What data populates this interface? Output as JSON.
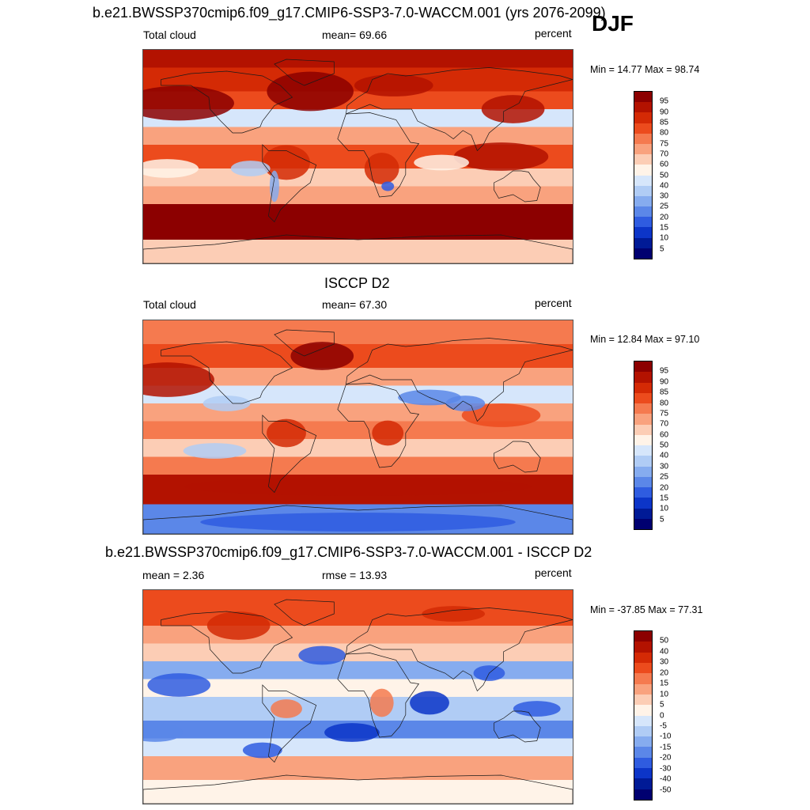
{
  "season": "DJF",
  "panels": [
    {
      "title": "b.e21.BWSSP370cmip6.f09_g17.CMIP6-SSP3-7.0-WACCM.001 (yrs 2076-2099)",
      "left_label": "Total cloud",
      "center_label": "mean=  69.66",
      "units": "percent",
      "minmax": "Min =  14.77 Max =  98.74",
      "scale": "abs",
      "colorbar_levels": [
        "95",
        "90",
        "85",
        "80",
        "75",
        "70",
        "60",
        "50",
        "40",
        "30",
        "25",
        "20",
        "15",
        "10",
        "5"
      ]
    },
    {
      "title": "ISCCP D2",
      "left_label": "Total cloud",
      "center_label": "mean=  67.30",
      "units": "percent",
      "minmax": "Min =  12.84 Max =  97.10",
      "scale": "abs",
      "colorbar_levels": [
        "95",
        "90",
        "85",
        "80",
        "75",
        "70",
        "60",
        "50",
        "40",
        "30",
        "25",
        "20",
        "15",
        "10",
        "5"
      ]
    },
    {
      "title": "b.e21.BWSSP370cmip6.f09_g17.CMIP6-SSP3-7.0-WACCM.001 - ISCCP D2",
      "left_label": "mean =   2.36",
      "center_label": "rmse =  13.93",
      "units": "percent",
      "minmax": "Min = -37.85 Max =  77.31",
      "scale": "diff",
      "colorbar_levels": [
        "50",
        "40",
        "30",
        "20",
        "15",
        "10",
        "5",
        "0",
        "-5",
        "-10",
        "-15",
        "-20",
        "-30",
        "-40",
        "-50"
      ]
    }
  ],
  "colors": {
    "palette": [
      "#8c0000",
      "#b31200",
      "#d42a05",
      "#ec4b1d",
      "#f57a4f",
      "#f9a27e",
      "#fccdb5",
      "#fff3e8",
      "#d6e6fb",
      "#b0ccf5",
      "#86acef",
      "#5b87e8",
      "#2f5ce0",
      "#0c35c8",
      "#001a96",
      "#000070"
    ]
  }
}
